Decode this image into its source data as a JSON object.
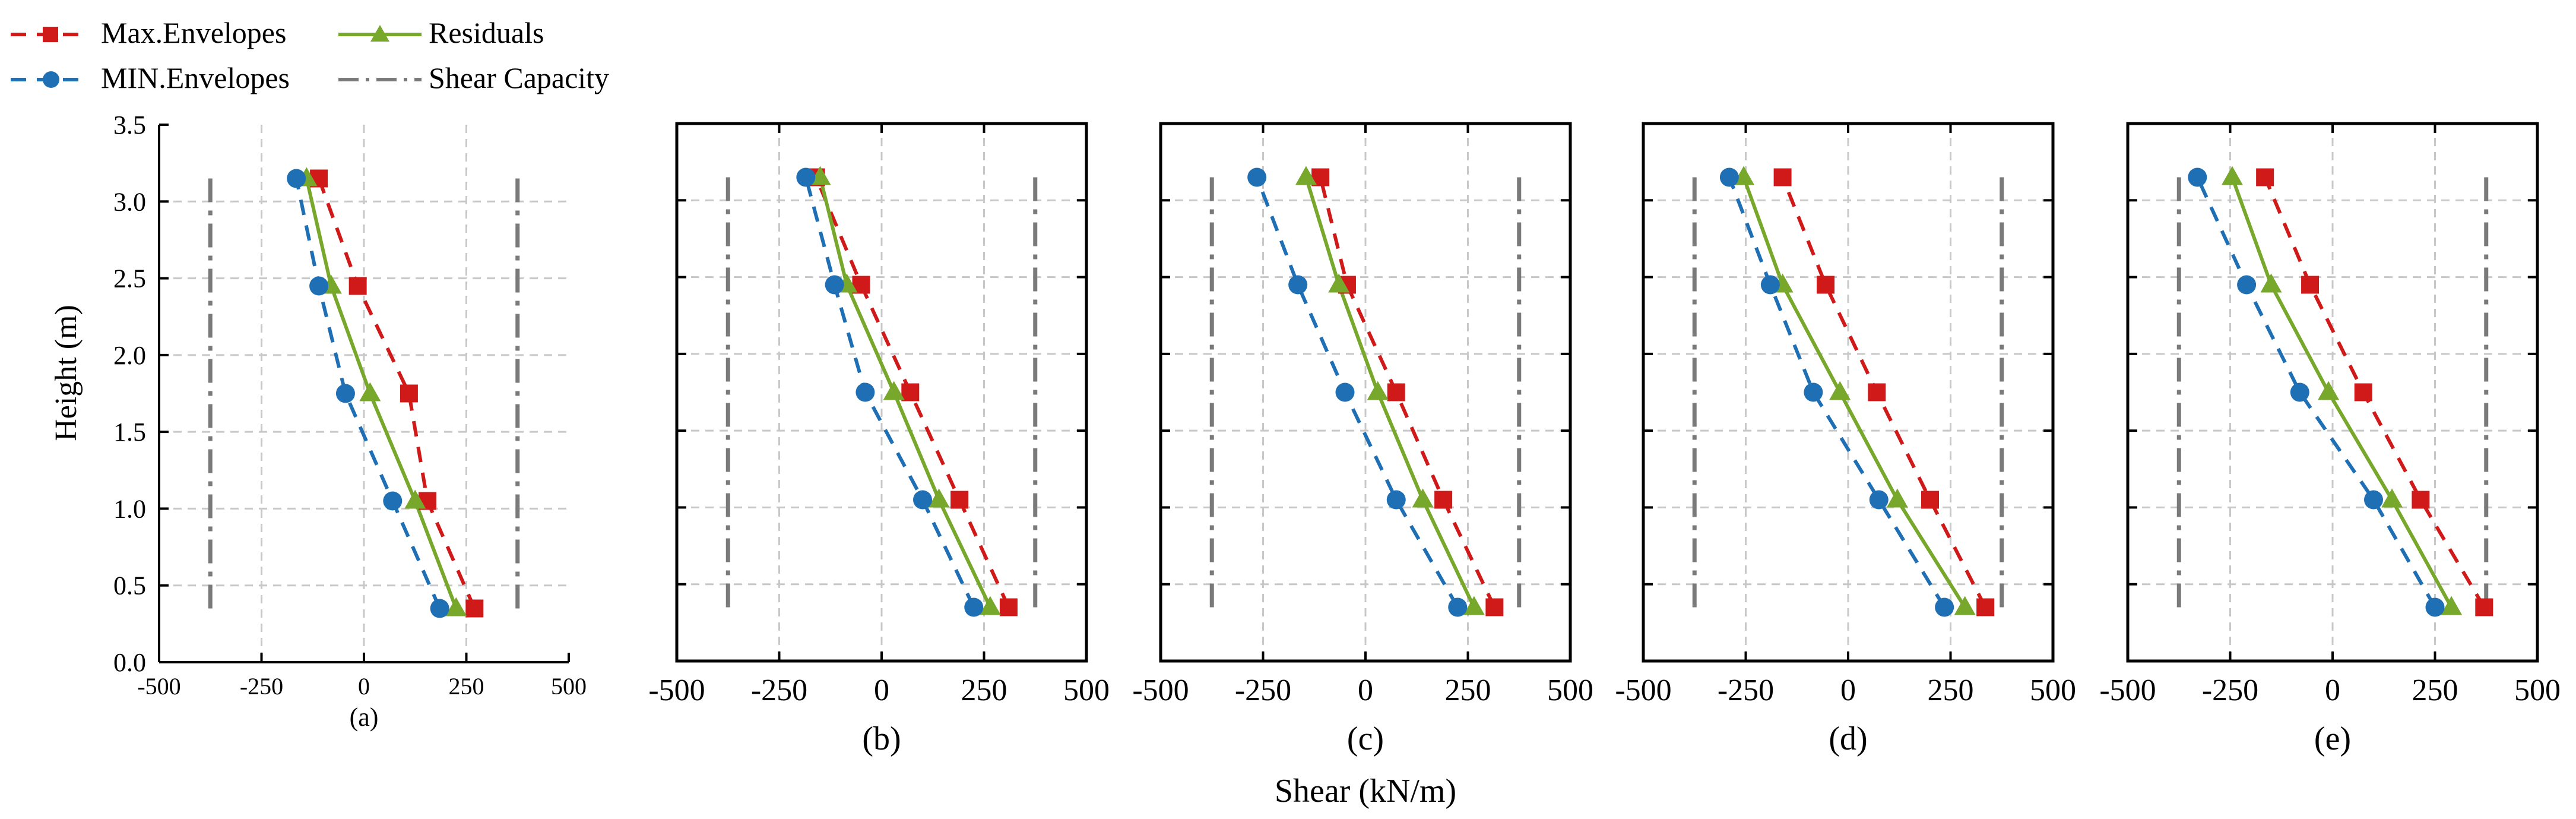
{
  "legend": {
    "max_envelopes": "Max.Envelopes",
    "residuals": "Residuals",
    "min_envelopes": "MIN.Envelopes",
    "shear_capacity": "Shear Capacity"
  },
  "colors": {
    "max": "#d01a1a",
    "min": "#1f6fb5",
    "residuals": "#77a82b",
    "capacity": "#7a7a7a",
    "grid": "#c8c8c8"
  },
  "ylabel": "Height (m)",
  "xlabel": "Shear (kN/m)",
  "chart_data": [
    {
      "type": "line",
      "caption": "(a)",
      "xlim": [
        -500,
        500
      ],
      "ylim": [
        0,
        3.5
      ],
      "x_ticks": [
        -500,
        -250,
        0,
        250,
        500
      ],
      "y_ticks": [
        0.0,
        0.5,
        1.0,
        1.5,
        2.0,
        2.5,
        3.0,
        3.5
      ],
      "x_tick_labels": [
        "-500",
        "-250",
        "0",
        "250",
        "500"
      ],
      "y_tick_labels": [
        "0.0",
        "0.5",
        "1.0",
        "1.5",
        "2.0",
        "2.5",
        "3.0",
        "3.5"
      ],
      "heights": [
        0.35,
        1.05,
        1.75,
        2.45,
        3.15
      ],
      "series": [
        {
          "key": "max",
          "name": "Max.Envelopes",
          "values": [
            270,
            155,
            110,
            -15,
            -110
          ]
        },
        {
          "key": "residuals",
          "name": "Residuals",
          "values": [
            225,
            125,
            15,
            -80,
            -140
          ]
        },
        {
          "key": "min",
          "name": "MIN.Envelopes",
          "values": [
            185,
            70,
            -45,
            -110,
            -165
          ]
        }
      ],
      "capacity": [
        -375,
        375
      ]
    },
    {
      "type": "line",
      "caption": "(b)",
      "xlim": [
        -500,
        500
      ],
      "ylim": [
        0,
        3.5
      ],
      "x_ticks": [
        -500,
        -250,
        0,
        250,
        500
      ],
      "y_ticks": [
        0.0,
        0.5,
        1.0,
        1.5,
        2.0,
        2.5,
        3.0,
        3.5
      ],
      "x_tick_labels": [
        "-500",
        "-250",
        "0",
        "250",
        "500"
      ],
      "heights": [
        0.35,
        1.05,
        1.75,
        2.45,
        3.15
      ],
      "series": [
        {
          "key": "max",
          "name": "Max.Envelopes",
          "values": [
            310,
            190,
            70,
            -50,
            -160
          ]
        },
        {
          "key": "residuals",
          "name": "Residuals",
          "values": [
            265,
            140,
            30,
            -85,
            -150
          ]
        },
        {
          "key": "min",
          "name": "MIN.Envelopes",
          "values": [
            225,
            100,
            -40,
            -115,
            -185
          ]
        }
      ],
      "capacity": [
        -375,
        375
      ]
    },
    {
      "type": "line",
      "caption": "(c)",
      "xlim": [
        -500,
        500
      ],
      "ylim": [
        0,
        3.5
      ],
      "x_ticks": [
        -500,
        -250,
        0,
        250,
        500
      ],
      "y_ticks": [
        0.0,
        0.5,
        1.0,
        1.5,
        2.0,
        2.5,
        3.0,
        3.5
      ],
      "x_tick_labels": [
        "-500",
        "-250",
        "0",
        "250",
        "500"
      ],
      "heights": [
        0.35,
        1.05,
        1.75,
        2.45,
        3.15
      ],
      "series": [
        {
          "key": "max",
          "name": "Max.Envelopes",
          "values": [
            315,
            190,
            75,
            -45,
            -110
          ]
        },
        {
          "key": "residuals",
          "name": "Residuals",
          "values": [
            265,
            140,
            30,
            -65,
            -145
          ]
        },
        {
          "key": "min",
          "name": "MIN.Envelopes",
          "values": [
            225,
            75,
            -50,
            -165,
            -265
          ]
        }
      ],
      "capacity": [
        -375,
        375
      ]
    },
    {
      "type": "line",
      "caption": "(d)",
      "xlim": [
        -500,
        500
      ],
      "ylim": [
        0,
        3.5
      ],
      "x_ticks": [
        -500,
        -250,
        0,
        250,
        500
      ],
      "y_ticks": [
        0.0,
        0.5,
        1.0,
        1.5,
        2.0,
        2.5,
        3.0,
        3.5
      ],
      "x_tick_labels": [
        "-500",
        "-250",
        "0",
        "250",
        "500"
      ],
      "heights": [
        0.35,
        1.05,
        1.75,
        2.45,
        3.15
      ],
      "series": [
        {
          "key": "max",
          "name": "Max.Envelopes",
          "values": [
            335,
            200,
            70,
            -55,
            -160
          ]
        },
        {
          "key": "residuals",
          "name": "Residuals",
          "values": [
            285,
            120,
            -20,
            -160,
            -255
          ]
        },
        {
          "key": "min",
          "name": "MIN.Envelopes",
          "values": [
            235,
            75,
            -85,
            -190,
            -290
          ]
        }
      ],
      "capacity": [
        -375,
        375
      ]
    },
    {
      "type": "line",
      "caption": "(e)",
      "xlim": [
        -500,
        500
      ],
      "ylim": [
        0,
        3.5
      ],
      "x_ticks": [
        -500,
        -250,
        0,
        250,
        500
      ],
      "y_ticks": [
        0.0,
        0.5,
        1.0,
        1.5,
        2.0,
        2.5,
        3.0,
        3.5
      ],
      "x_tick_labels": [
        "-500",
        "-250",
        "0",
        "250",
        "500"
      ],
      "heights": [
        0.35,
        1.05,
        1.75,
        2.45,
        3.15
      ],
      "series": [
        {
          "key": "max",
          "name": "Max.Envelopes",
          "values": [
            370,
            215,
            75,
            -55,
            -165
          ]
        },
        {
          "key": "residuals",
          "name": "Residuals",
          "values": [
            290,
            145,
            -10,
            -150,
            -245
          ]
        },
        {
          "key": "min",
          "name": "MIN.Envelopes",
          "values": [
            250,
            100,
            -80,
            -210,
            -330
          ]
        }
      ],
      "capacity": [
        -375,
        375
      ]
    }
  ]
}
